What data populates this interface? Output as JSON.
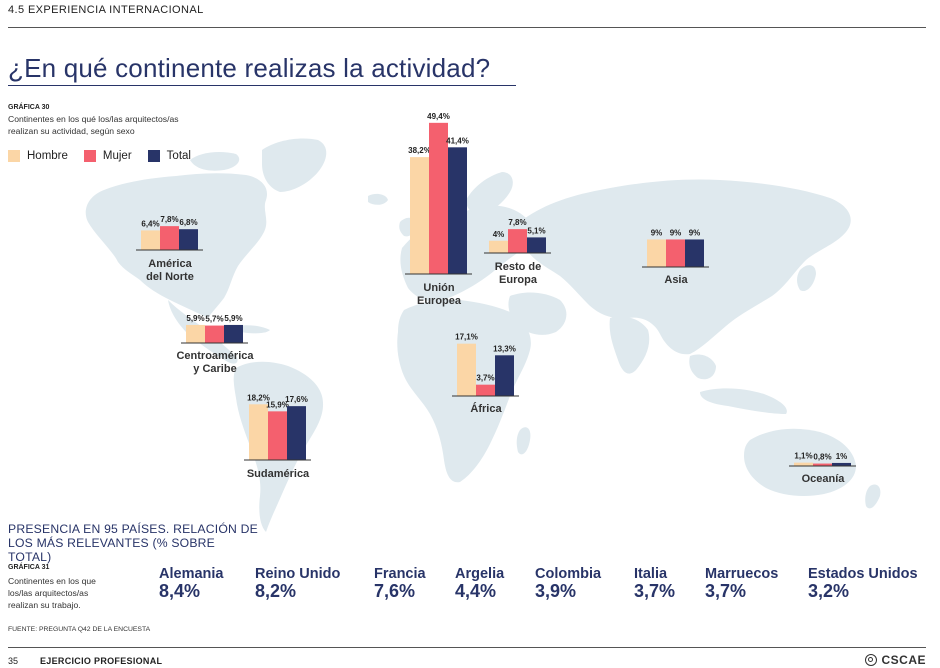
{
  "header": {
    "section": "4.5 EXPERIENCIA INTERNACIONAL",
    "title": "¿En qué continente realizas la actividad?"
  },
  "chart30": {
    "label": "GRÁFICA 30",
    "description": "Continentes en los qué los/las arquitectos/as realizan su actividad, según sexo"
  },
  "legend": [
    {
      "name": "Hombre",
      "color": "#fbd6a6"
    },
    {
      "name": "Mujer",
      "color": "#f4606e"
    },
    {
      "name": "Total",
      "color": "#283468"
    }
  ],
  "chart_data": {
    "type": "bar",
    "title": "",
    "unit": "%",
    "series": [
      {
        "name": "Hombre",
        "color": "#fbd6a6"
      },
      {
        "name": "Mujer",
        "color": "#f4606e"
      },
      {
        "name": "Total",
        "color": "#283468"
      }
    ],
    "groups": [
      {
        "region": "América del Norte",
        "values": [
          6.4,
          7.8,
          6.8
        ],
        "labels": [
          "6,4%",
          "7,8%",
          "6,8%"
        ]
      },
      {
        "region": "Unión Europea",
        "values": [
          38.2,
          49.4,
          41.4
        ],
        "labels": [
          "38,2%",
          "49,4%",
          "41,4%"
        ]
      },
      {
        "region": "Resto de Europa",
        "values": [
          4,
          7.8,
          5.1
        ],
        "labels": [
          "4%",
          "7,8%",
          "5,1%"
        ]
      },
      {
        "region": "Asia",
        "values": [
          9,
          9,
          9
        ],
        "labels": [
          "9%",
          "9%",
          "9%"
        ]
      },
      {
        "region": "Centroamérica y Caribe",
        "values": [
          5.9,
          5.7,
          5.9
        ],
        "labels": [
          "5,9%",
          "5,7%",
          "5,9%"
        ]
      },
      {
        "region": "África",
        "values": [
          17.1,
          3.7,
          13.3
        ],
        "labels": [
          "17,1%",
          "3,7%",
          "13,3%"
        ]
      },
      {
        "region": "Sudamérica",
        "values": [
          18.2,
          15.9,
          17.6
        ],
        "labels": [
          "18,2%",
          "15,9%",
          "17,6%"
        ]
      },
      {
        "region": "Oceanía",
        "values": [
          1.1,
          0.8,
          1
        ],
        "labels": [
          "1,1%",
          "0,8%",
          "1%"
        ]
      }
    ]
  },
  "presence": {
    "title": "PRESENCIA EN 95 PAÍSES. RELACIÓN DE LOS MÁS RELEVANTES (% SOBRE TOTAL)"
  },
  "chart31": {
    "label": "GRÁFICA 31",
    "description": "Continentes en los que los/las arquitectos/as realizan su trabajo.",
    "countries": [
      {
        "name": "Alemania",
        "value": "8,4%"
      },
      {
        "name": "Reino Unido",
        "value": "8,2%"
      },
      {
        "name": "Francia",
        "value": "7,6%"
      },
      {
        "name": "Argelia",
        "value": "4,4%"
      },
      {
        "name": "Colombia",
        "value": "3,9%"
      },
      {
        "name": "Italia",
        "value": "3,7%"
      },
      {
        "name": "Marruecos",
        "value": "3,7%"
      },
      {
        "name": "Estados Unidos",
        "value": "3,2%"
      }
    ]
  },
  "footer": {
    "source": "FUENTE: PREGUNTA Q42 DE LA ENCUESTA",
    "page": "35",
    "title": "EJERCICIO PROFESIONAL",
    "logo": "CSCAE"
  },
  "colors": {
    "accent": "#283468",
    "map": "#dfe9ee"
  }
}
